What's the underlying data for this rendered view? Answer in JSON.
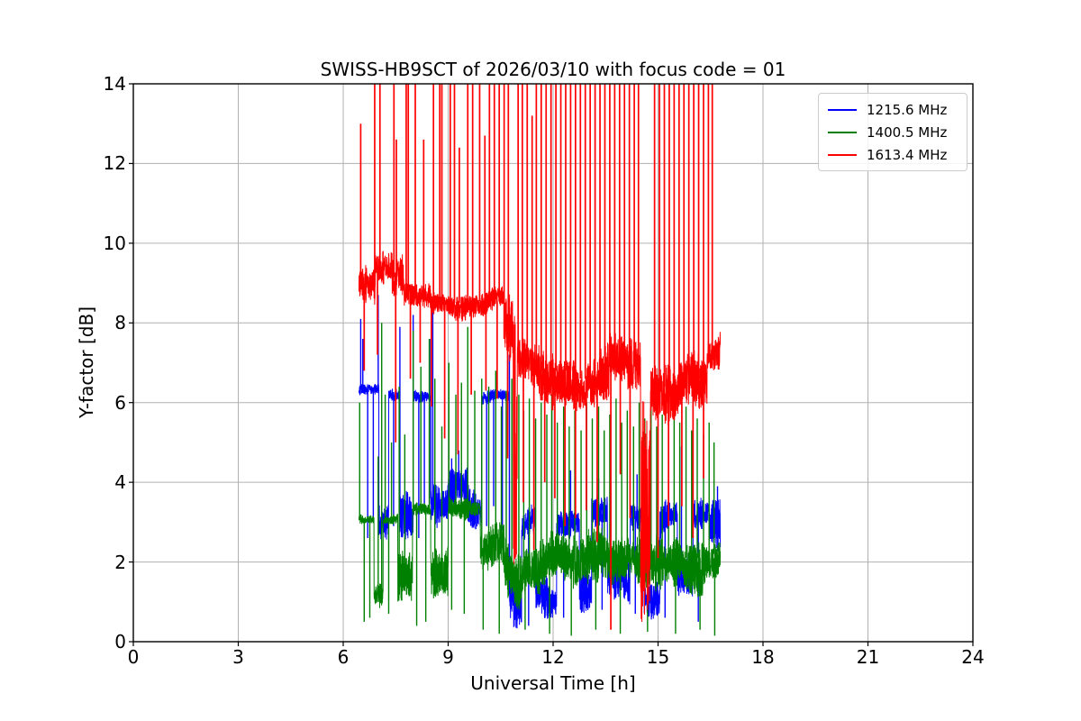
{
  "chart_data": {
    "type": "line",
    "title": "SWISS-HB9SCT of 2026/03/10 with focus code = 01",
    "xlabel": "Universal Time [h]",
    "ylabel": "Y-factor [dB]",
    "xlim": [
      0,
      24
    ],
    "ylim": [
      0,
      14
    ],
    "xticks": [
      0,
      3,
      6,
      9,
      12,
      15,
      18,
      21,
      24
    ],
    "yticks": [
      0,
      2,
      4,
      6,
      8,
      10,
      12,
      14
    ],
    "grid": true,
    "grid_color": "#b0b0b0",
    "frame_color": "#000000",
    "background": "#ffffff",
    "legend": {
      "position": "upper right"
    },
    "time_range": [
      6.45,
      16.78
    ],
    "sample_step_h": 0.004,
    "note": "segments are [t_start_h, t_end_h, center_dB, half_range_dB] envelope estimates of the noisy bands; spikes are [time_h, peak_dB] vertical excursions; values clipped to ylim",
    "series": [
      {
        "name": "1215.6 MHz",
        "color": "#0000ff",
        "seed": 101,
        "line_width": 1.0,
        "spike_width": 1.4,
        "segments": [
          [
            6.45,
            7.02,
            6.35,
            0.2
          ],
          [
            7.02,
            7.3,
            3.0,
            0.7
          ],
          [
            7.3,
            7.62,
            6.2,
            0.18
          ],
          [
            7.62,
            8.0,
            3.2,
            0.7
          ],
          [
            8.0,
            8.5,
            6.18,
            0.18
          ],
          [
            8.5,
            9.0,
            3.6,
            0.6
          ],
          [
            9.0,
            9.55,
            3.8,
            0.6
          ],
          [
            9.55,
            9.95,
            3.4,
            0.6
          ],
          [
            9.95,
            10.75,
            6.15,
            0.2
          ],
          [
            10.75,
            11.1,
            1.2,
            0.7
          ],
          [
            11.1,
            11.5,
            3.0,
            0.5
          ],
          [
            11.5,
            12.1,
            1.0,
            0.6
          ],
          [
            12.1,
            12.75,
            3.0,
            0.5
          ],
          [
            12.75,
            13.1,
            1.2,
            0.7
          ],
          [
            13.1,
            13.55,
            3.2,
            0.45
          ],
          [
            13.55,
            14.2,
            1.5,
            0.8
          ],
          [
            14.2,
            14.6,
            3.1,
            0.5
          ],
          [
            14.6,
            15.05,
            1.1,
            0.6
          ],
          [
            15.05,
            15.55,
            3.0,
            0.5
          ],
          [
            15.55,
            16.0,
            1.4,
            0.7
          ],
          [
            16.0,
            16.45,
            3.0,
            0.5
          ],
          [
            16.45,
            16.78,
            2.6,
            0.9
          ]
        ],
        "up_spikes": [
          [
            6.5,
            8.1
          ],
          [
            6.56,
            7.6
          ],
          [
            7.0,
            8.7
          ],
          [
            7.62,
            7.9
          ],
          [
            8.0,
            8.2
          ],
          [
            8.5,
            7.6
          ],
          [
            8.56,
            8.4
          ],
          [
            9.1,
            4.6
          ],
          [
            9.3,
            4.8
          ],
          [
            10.75,
            7.2
          ],
          [
            12.5,
            4.3
          ],
          [
            13.3,
            4.1
          ],
          [
            14.4,
            4.2
          ],
          [
            15.67,
            4.9
          ],
          [
            16.7,
            3.9
          ]
        ],
        "down_spikes": [
          [
            6.7,
            2.6
          ],
          [
            6.86,
            3.0
          ],
          [
            7.44,
            2.9
          ],
          [
            8.16,
            2.6
          ],
          [
            8.32,
            3.3
          ],
          [
            10.1,
            2.9
          ],
          [
            10.3,
            3.4
          ],
          [
            10.55,
            2.8
          ],
          [
            11.3,
            0.4
          ],
          [
            12.3,
            0.6
          ],
          [
            13.4,
            0.8
          ],
          [
            14.35,
            0.7
          ],
          [
            15.2,
            0.6
          ],
          [
            16.15,
            0.5
          ]
        ]
      },
      {
        "name": "1400.5 MHz",
        "color": "#008000",
        "seed": 202,
        "line_width": 1.0,
        "spike_width": 1.4,
        "segments": [
          [
            6.45,
            6.88,
            3.05,
            0.15
          ],
          [
            6.88,
            7.14,
            1.15,
            0.4
          ],
          [
            7.14,
            7.56,
            3.05,
            0.15
          ],
          [
            7.56,
            7.98,
            1.5,
            0.75
          ],
          [
            7.98,
            8.5,
            3.3,
            0.22
          ],
          [
            8.5,
            9.0,
            1.6,
            0.85
          ],
          [
            9.0,
            9.92,
            3.35,
            0.3
          ],
          [
            9.92,
            10.6,
            2.3,
            0.75
          ],
          [
            10.6,
            11.15,
            1.8,
            0.85
          ],
          [
            11.15,
            12.3,
            2.1,
            0.75
          ],
          [
            12.3,
            13.3,
            2.0,
            0.8
          ],
          [
            13.3,
            14.3,
            2.2,
            0.75
          ],
          [
            14.3,
            15.3,
            2.0,
            0.8
          ],
          [
            15.3,
            16.3,
            2.1,
            0.75
          ],
          [
            16.3,
            16.78,
            2.2,
            0.65
          ]
        ],
        "up_spikes": [
          [
            6.47,
            6.0
          ],
          [
            7.0,
            4.65
          ],
          [
            7.1,
            8.0
          ],
          [
            7.2,
            6.2
          ],
          [
            7.38,
            5.0
          ],
          [
            7.6,
            6.4
          ],
          [
            7.76,
            5.2
          ],
          [
            8.0,
            7.8
          ],
          [
            8.22,
            6.9
          ],
          [
            8.46,
            7.6
          ],
          [
            8.62,
            6.6
          ],
          [
            8.82,
            5.4
          ],
          [
            9.02,
            7.0
          ],
          [
            9.22,
            6.2
          ],
          [
            9.38,
            6.5
          ],
          [
            9.56,
            7.9
          ],
          [
            9.76,
            6.3
          ],
          [
            9.96,
            6.6
          ],
          [
            10.16,
            6.4
          ],
          [
            10.36,
            6.8
          ],
          [
            10.52,
            5.9
          ],
          [
            10.66,
            6.3
          ],
          [
            10.82,
            6.6
          ],
          [
            11.02,
            6.2
          ],
          [
            11.16,
            5.8
          ],
          [
            11.32,
            6.1
          ],
          [
            11.5,
            5.6
          ],
          [
            11.66,
            6.0
          ],
          [
            11.82,
            5.7
          ],
          [
            11.96,
            6.2
          ],
          [
            12.12,
            5.5
          ],
          [
            12.3,
            5.9
          ],
          [
            12.46,
            5.4
          ],
          [
            12.62,
            5.8
          ],
          [
            12.8,
            5.3
          ],
          [
            12.96,
            6.0
          ],
          [
            13.12,
            5.6
          ],
          [
            13.3,
            5.9
          ],
          [
            13.46,
            5.3
          ],
          [
            13.62,
            5.7
          ],
          [
            13.8,
            6.1
          ],
          [
            13.96,
            5.5
          ],
          [
            14.12,
            5.8
          ],
          [
            14.3,
            5.4
          ],
          [
            14.46,
            6.0
          ],
          [
            14.62,
            5.6
          ],
          [
            14.8,
            5.9
          ],
          [
            14.96,
            5.4
          ],
          [
            15.12,
            5.7
          ],
          [
            15.3,
            5.2
          ],
          [
            15.46,
            5.8
          ],
          [
            15.62,
            5.5
          ],
          [
            15.8,
            5.9
          ],
          [
            15.96,
            5.3
          ],
          [
            16.12,
            5.6
          ],
          [
            16.3,
            5.2
          ],
          [
            16.46,
            5.5
          ],
          [
            16.6,
            5.0
          ]
        ],
        "down_spikes": [
          [
            6.6,
            0.5
          ],
          [
            6.76,
            0.6
          ],
          [
            7.3,
            0.7
          ],
          [
            8.1,
            0.4
          ],
          [
            8.36,
            0.5
          ],
          [
            9.1,
            0.8
          ],
          [
            9.46,
            0.7
          ],
          [
            10.0,
            0.3
          ],
          [
            10.46,
            0.2
          ],
          [
            11.2,
            0.3
          ],
          [
            11.9,
            0.2
          ],
          [
            12.52,
            0.15
          ],
          [
            13.22,
            0.3
          ],
          [
            13.92,
            0.2
          ],
          [
            14.7,
            0.25
          ],
          [
            15.5,
            0.2
          ],
          [
            16.2,
            0.3
          ],
          [
            16.62,
            0.15
          ]
        ]
      },
      {
        "name": "1613.4 MHz",
        "color": "#ff0000",
        "seed": 303,
        "line_width": 1.0,
        "spike_width": 1.7,
        "segments": [
          [
            6.45,
            6.92,
            8.9,
            0.55
          ],
          [
            6.92,
            7.4,
            9.45,
            0.45
          ],
          [
            7.4,
            7.72,
            9.15,
            0.55
          ],
          [
            7.72,
            8.5,
            8.7,
            0.45
          ],
          [
            8.5,
            9.5,
            8.5,
            0.35
          ],
          [
            9.5,
            10.6,
            8.55,
            0.35
          ],
          [
            10.6,
            10.86,
            7.6,
            1.0
          ],
          [
            10.86,
            10.98,
            4.3,
            4.3
          ],
          [
            10.98,
            11.6,
            7.0,
            0.7
          ],
          [
            11.6,
            12.6,
            6.8,
            0.8
          ],
          [
            12.6,
            13.6,
            6.6,
            0.85
          ],
          [
            13.6,
            14.5,
            6.9,
            0.8
          ],
          [
            14.5,
            14.78,
            3.6,
            3.6
          ],
          [
            14.78,
            15.6,
            6.4,
            0.85
          ],
          [
            15.6,
            16.4,
            6.6,
            0.8
          ],
          [
            16.4,
            16.78,
            7.3,
            0.55
          ]
        ],
        "up_spikes": [
          [
            6.5,
            13.0
          ],
          [
            6.9,
            14.3
          ],
          [
            7.05,
            14.3
          ],
          [
            7.45,
            14.3
          ],
          [
            7.52,
            12.6
          ],
          [
            7.8,
            14.3
          ],
          [
            7.86,
            14.3
          ],
          [
            8.06,
            14.3
          ],
          [
            8.3,
            12.6
          ],
          [
            8.58,
            14.3
          ],
          [
            8.76,
            14.3
          ],
          [
            8.82,
            14.3
          ],
          [
            9.06,
            14.3
          ],
          [
            9.18,
            14.3
          ],
          [
            9.32,
            12.4
          ],
          [
            9.56,
            14.3
          ],
          [
            9.7,
            14.3
          ],
          [
            9.9,
            14.3
          ],
          [
            10.05,
            12.7
          ],
          [
            10.18,
            14.3
          ],
          [
            10.32,
            14.3
          ],
          [
            10.46,
            14.3
          ],
          [
            10.6,
            14.3
          ],
          [
            10.72,
            14.3
          ],
          [
            11.0,
            14.3
          ],
          [
            11.12,
            14.3
          ],
          [
            11.26,
            14.3
          ],
          [
            11.4,
            13.2
          ],
          [
            11.52,
            14.3
          ],
          [
            11.66,
            14.3
          ],
          [
            11.8,
            14.3
          ],
          [
            11.94,
            14.3
          ],
          [
            12.08,
            14.3
          ],
          [
            12.22,
            14.3
          ],
          [
            12.36,
            14.3
          ],
          [
            12.5,
            14.3
          ],
          [
            12.64,
            14.3
          ],
          [
            12.78,
            14.3
          ],
          [
            12.92,
            14.3
          ],
          [
            13.06,
            14.3
          ],
          [
            13.2,
            14.3
          ],
          [
            13.34,
            14.3
          ],
          [
            13.48,
            14.3
          ],
          [
            13.62,
            14.3
          ],
          [
            13.76,
            14.3
          ],
          [
            13.9,
            14.3
          ],
          [
            14.04,
            14.3
          ],
          [
            14.18,
            14.3
          ],
          [
            14.32,
            14.3
          ],
          [
            14.44,
            14.3
          ],
          [
            14.9,
            14.3
          ],
          [
            15.04,
            14.3
          ],
          [
            15.18,
            14.3
          ],
          [
            15.32,
            14.3
          ],
          [
            15.46,
            14.3
          ],
          [
            15.6,
            14.3
          ],
          [
            15.74,
            14.3
          ],
          [
            15.88,
            14.3
          ],
          [
            16.02,
            14.3
          ],
          [
            16.16,
            14.3
          ],
          [
            16.3,
            14.3
          ],
          [
            16.44,
            14.3
          ],
          [
            16.55,
            14.3
          ]
        ],
        "down_spikes": [
          [
            6.6,
            6.8
          ],
          [
            6.98,
            7.2
          ],
          [
            7.5,
            5.0
          ],
          [
            7.92,
            6.6
          ],
          [
            8.2,
            7.0
          ],
          [
            8.52,
            5.9
          ],
          [
            8.9,
            5.1
          ],
          [
            9.28,
            4.7
          ],
          [
            9.66,
            6.2
          ],
          [
            10.08,
            6.3
          ],
          [
            10.4,
            6.1
          ],
          [
            10.7,
            4.6
          ],
          [
            11.15,
            3.5
          ],
          [
            11.45,
            2.3
          ],
          [
            11.76,
            4.0
          ],
          [
            12.05,
            3.6
          ],
          [
            12.34,
            2.9
          ],
          [
            12.64,
            3.1
          ],
          [
            12.95,
            3.3
          ],
          [
            13.26,
            2.5
          ],
          [
            13.65,
            0.3
          ],
          [
            13.92,
            4.2
          ],
          [
            14.2,
            3.1
          ],
          [
            15.0,
            2.1
          ],
          [
            15.3,
            2.9
          ],
          [
            15.68,
            3.4
          ],
          [
            16.0,
            2.6
          ],
          [
            16.3,
            4.1
          ]
        ]
      }
    ]
  }
}
